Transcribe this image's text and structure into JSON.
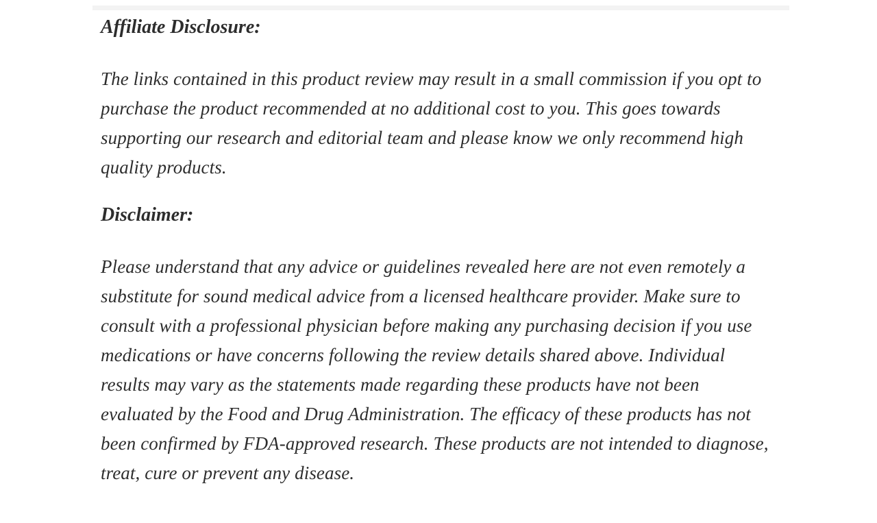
{
  "page": {
    "background_color": "#ffffff",
    "text_color": "#2d2d2d",
    "top_strip_color": "#f3f3f3"
  },
  "sections": [
    {
      "heading": "Affiliate Disclosure:",
      "paragraph": "The links contained in this product review may result in a small commission if you opt to purchase the product recommended at no additional cost to you. This goes towards supporting our research and editorial team and please know we only recommend high quality products."
    },
    {
      "heading": "Disclaimer:",
      "paragraph": "Please understand that any advice or guidelines revealed here are not even remotely a substitute for sound medical advice from a licensed healthcare provider. Make sure to consult with a professional physician before making any purchasing decision if you use medications or have concerns following the review details shared above. Individual results may vary as the statements made regarding these products have not been evaluated by the Food and Drug Administration. The efficacy of these products has not been confirmed by FDA-approved research. These products are not intended to diagnose, treat, cure or prevent any disease."
    }
  ]
}
